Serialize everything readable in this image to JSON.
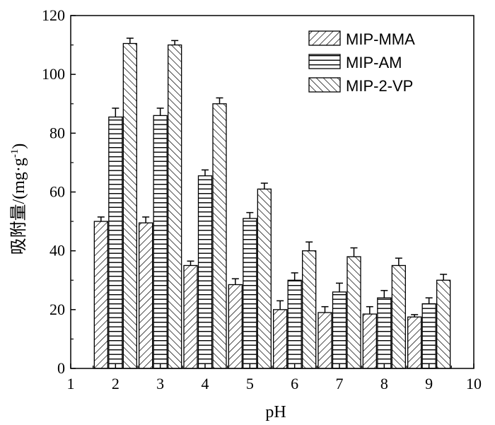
{
  "chart_data": {
    "type": "bar",
    "title": "",
    "xlabel": "pH",
    "ylabel": "吸附量/(mg·g",
    "ylabel_sup": "-1",
    "ylabel_tail": ")",
    "xlim": [
      1,
      10
    ],
    "ylim": [
      0,
      120
    ],
    "x_ticks": [
      "1",
      "2",
      "3",
      "4",
      "5",
      "6",
      "7",
      "8",
      "9",
      "10"
    ],
    "y_ticks": [
      "0",
      "20",
      "40",
      "60",
      "80",
      "100",
      "120"
    ],
    "categories": [
      2,
      3,
      4,
      5,
      6,
      7,
      8,
      9
    ],
    "grid": false,
    "legend_position": "top-right",
    "series": [
      {
        "name": "MIP-MMA",
        "pattern": "diagonal-forward",
        "values": [
          50,
          49.5,
          35,
          28.5,
          20,
          19,
          18.5,
          17.5
        ],
        "errors": [
          1.5,
          2,
          1.5,
          2,
          3,
          2,
          2.5,
          0.8
        ]
      },
      {
        "name": "MIP-AM",
        "pattern": "horizontal",
        "values": [
          85.5,
          86,
          65.5,
          51,
          30,
          26,
          24,
          22
        ],
        "errors": [
          3,
          2.5,
          2,
          2,
          2.5,
          3,
          2.5,
          2
        ]
      },
      {
        "name": "MIP-2-VP",
        "pattern": "diagonal-back",
        "values": [
          110.5,
          110,
          90,
          61,
          40,
          38,
          35,
          30
        ],
        "errors": [
          1.8,
          1.5,
          2,
          2,
          3,
          3,
          2.5,
          2
        ]
      }
    ]
  }
}
